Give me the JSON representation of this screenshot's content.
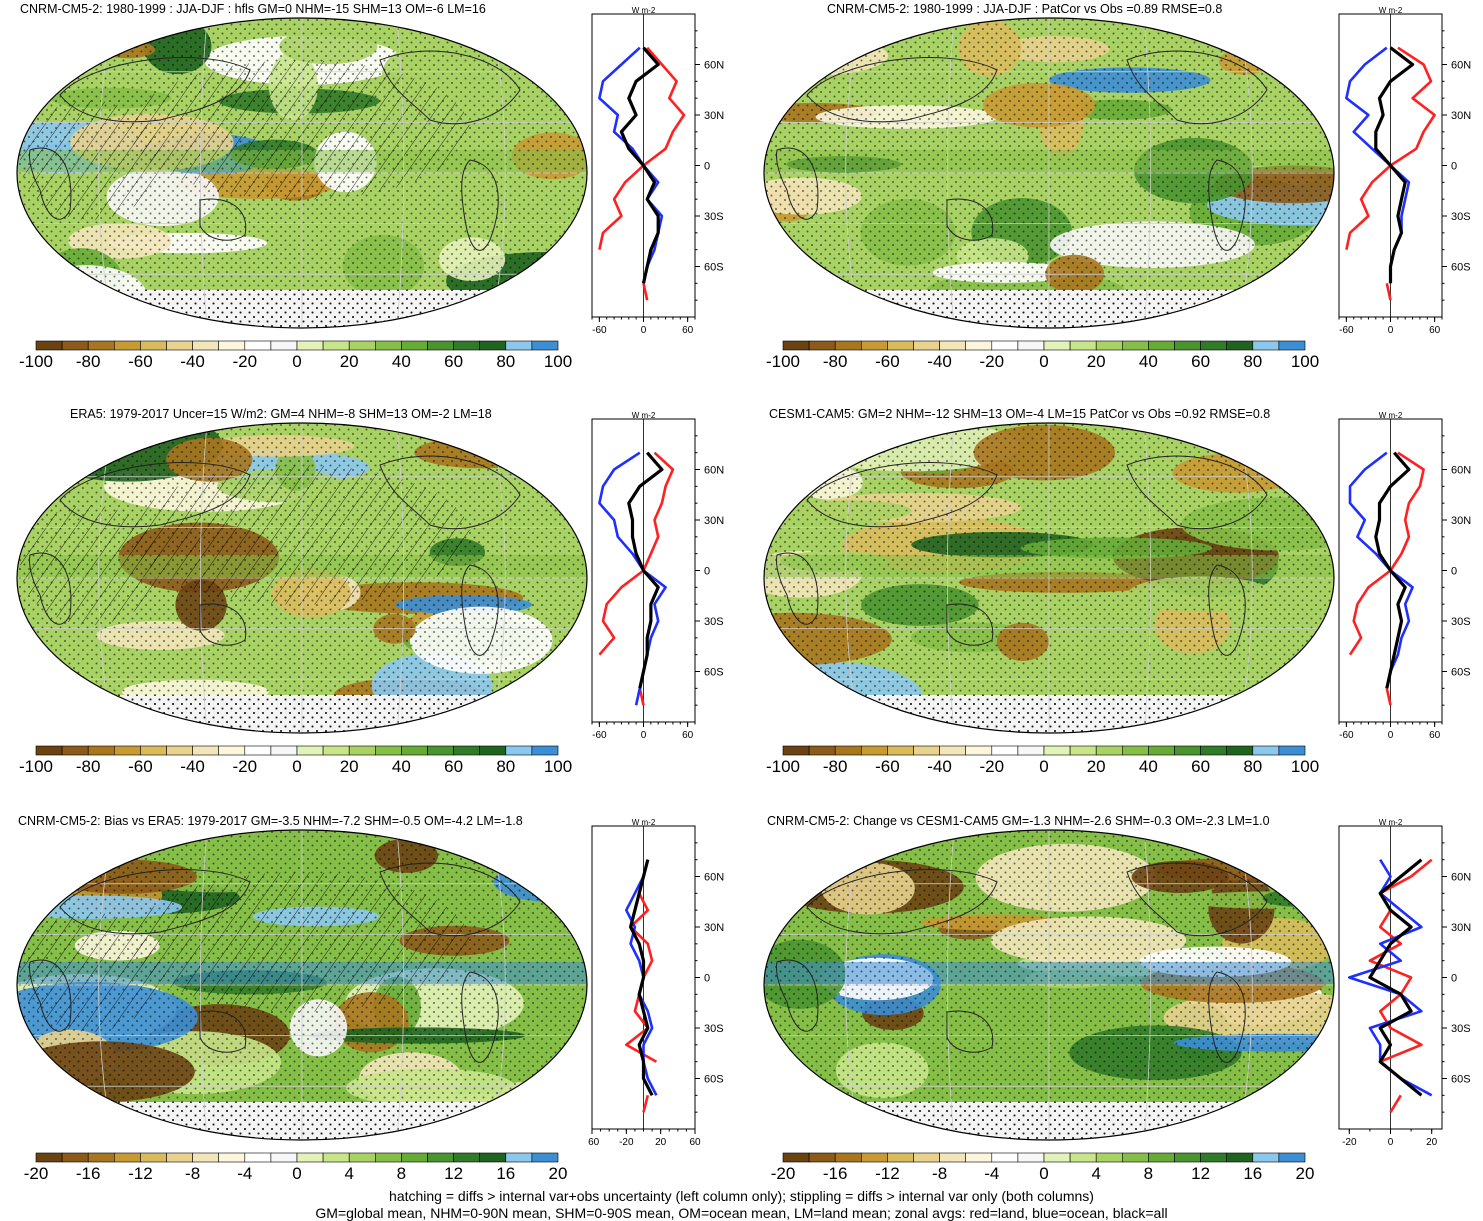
{
  "palette": [
    "#6b4313",
    "#8c5a19",
    "#a9761f",
    "#c89a33",
    "#d9bb5c",
    "#e8d28d",
    "#f2e6b9",
    "#fbf6dc",
    "#ffffff",
    "#f7f7f7",
    "#e3f2b8",
    "#c8e58a",
    "#a8d263",
    "#86bf47",
    "#66ab36",
    "#4a9430",
    "#317a28",
    "#1f6320",
    "#8cc8ee",
    "#3c8ed5"
  ],
  "line_colors": {
    "land": "#ff2020",
    "ocean": "#1e2fff",
    "all": "#000000"
  },
  "panels": [
    {
      "id": "p1",
      "title": "CNRM-CM5-2: 1980-1999 : JJA-DJF : hfls GM=0 NHM=-15 SHM=13 OM=-6 LM=16",
      "colorbar_labels": [
        "-100",
        "-80",
        "-60",
        "-40",
        "-20",
        "0",
        "20",
        "40",
        "60",
        "80",
        "100"
      ],
      "zonal_unit": "W m-2",
      "zonal_xticks": [
        "-60",
        "0",
        "60"
      ],
      "zonal_xlim": [
        -70,
        70
      ],
      "zonal_ylabels": [
        "60N",
        "30N",
        "0",
        "30S",
        "60S"
      ],
      "hatching": true,
      "chart_data": {
        "type": "line",
        "title": "CNRM-CM5-2: 1980-1999 : JJA-DJF : hfls GM=0 NHM=-15 SHM=13 OM=-6 LM=16",
        "xlabel": "W m-2",
        "latitudes": [
          80,
          70,
          60,
          50,
          40,
          30,
          20,
          10,
          0,
          -10,
          -20,
          -30,
          -40,
          -50,
          -60,
          -70,
          -80
        ],
        "series": [
          {
            "name": "red=land",
            "values": [
              null,
              5,
              25,
              45,
              35,
              55,
              40,
              30,
              0,
              -25,
              -40,
              -30,
              -55,
              -60,
              null,
              0,
              5
            ]
          },
          {
            "name": "blue=ocean",
            "values": [
              null,
              -5,
              -30,
              -55,
              -60,
              -35,
              -40,
              -15,
              0,
              20,
              5,
              25,
              20,
              15,
              5,
              0,
              null
            ]
          },
          {
            "name": "black=all",
            "values": [
              null,
              0,
              20,
              -10,
              -20,
              -10,
              -30,
              -20,
              0,
              15,
              5,
              20,
              20,
              10,
              5,
              0,
              null
            ]
          }
        ]
      }
    },
    {
      "id": "p2",
      "title": "CNRM-CM5-2: 1980-1999 : JJA-DJF : PatCor vs Obs =0.89 RMSE=0.8",
      "colorbar_labels": [
        "-100",
        "-80",
        "-60",
        "-40",
        "-20",
        "0",
        "20",
        "40",
        "60",
        "80",
        "100"
      ],
      "zonal_unit": "W m-2",
      "zonal_xticks": [
        "-60",
        "0",
        "60"
      ],
      "zonal_xlim": [
        -70,
        70
      ],
      "zonal_ylabels": [
        "60N",
        "30N",
        "0",
        "30S",
        "60S"
      ],
      "hatching": false,
      "chart_data": {
        "type": "line",
        "title": "CNRM-CM5-2: 1980-1999 : JJA-DJF : PatCor vs Obs =0.89 RMSE=0.8",
        "xlabel": "W m-2",
        "latitudes": [
          80,
          70,
          60,
          50,
          40,
          30,
          20,
          10,
          0,
          -10,
          -20,
          -30,
          -40,
          -50,
          -60,
          -70,
          -80
        ],
        "series": [
          {
            "name": "red=land",
            "values": [
              null,
              10,
              45,
              55,
              30,
              60,
              45,
              35,
              0,
              -25,
              -40,
              -30,
              -55,
              -60,
              null,
              -5,
              0
            ]
          },
          {
            "name": "blue=ocean",
            "values": [
              null,
              -5,
              -35,
              -55,
              -60,
              -30,
              -50,
              -25,
              0,
              25,
              20,
              15,
              15,
              5,
              0,
              0,
              null
            ]
          },
          {
            "name": "black=all",
            "values": [
              null,
              0,
              30,
              0,
              -15,
              -10,
              -20,
              -20,
              0,
              20,
              15,
              10,
              15,
              5,
              0,
              0,
              null
            ]
          }
        ]
      }
    },
    {
      "id": "p3",
      "title": "ERA5: 1979-2017 Uncer=15 W/m2: GM=4 NHM=-8 SHM=13 OM=-2 LM=18",
      "colorbar_labels": [
        "-100",
        "-80",
        "-60",
        "-40",
        "-20",
        "0",
        "20",
        "40",
        "60",
        "80",
        "100"
      ],
      "zonal_unit": "W m-2",
      "zonal_xticks": [
        "-60",
        "0",
        "60"
      ],
      "zonal_xlim": [
        -70,
        70
      ],
      "zonal_ylabels": [
        "60N",
        "30N",
        "0",
        "30S",
        "60S"
      ],
      "hatching": true,
      "chart_data": {
        "type": "line",
        "title": "ERA5: 1979-2017 Uncer=15 W/m2: GM=4 NHM=-8 SHM=13 OM=-2 LM=18",
        "xlabel": "W m-2",
        "latitudes": [
          80,
          70,
          60,
          50,
          40,
          30,
          20,
          10,
          0,
          -10,
          -20,
          -30,
          -40,
          -50,
          -60,
          -70,
          -80
        ],
        "series": [
          {
            "name": "red=land",
            "values": [
              null,
              15,
              40,
              30,
              25,
              15,
              20,
              10,
              0,
              -30,
              -50,
              -55,
              -40,
              -60,
              null,
              -5,
              0
            ]
          },
          {
            "name": "blue=ocean",
            "values": [
              null,
              -5,
              -40,
              -55,
              -60,
              -40,
              -35,
              -15,
              0,
              30,
              15,
              20,
              10,
              5,
              0,
              -5,
              -10
            ]
          },
          {
            "name": "black=all",
            "values": [
              null,
              5,
              25,
              -5,
              -20,
              -15,
              -15,
              -10,
              0,
              20,
              10,
              10,
              5,
              5,
              0,
              -5,
              null
            ]
          }
        ]
      }
    },
    {
      "id": "p4",
      "title": "CESM1-CAM5: GM=2 NHM=-12 SHM=13 OM=-4 LM=15 PatCor vs Obs =0.92 RMSE=0.8",
      "colorbar_labels": [
        "-100",
        "-80",
        "-60",
        "-40",
        "-20",
        "0",
        "20",
        "40",
        "60",
        "80",
        "100"
      ],
      "zonal_unit": "W m-2",
      "zonal_xticks": [
        "-60",
        "0",
        "60"
      ],
      "zonal_xlim": [
        -70,
        70
      ],
      "zonal_ylabels": [
        "60N",
        "30N",
        "0",
        "30S",
        "60S"
      ],
      "hatching": false,
      "chart_data": {
        "type": "line",
        "title": "CESM1-CAM5: GM=2 NHM=-12 SHM=13 OM=-4 LM=15 PatCor vs Obs =0.92 RMSE=0.8",
        "xlabel": "W m-2",
        "latitudes": [
          80,
          70,
          60,
          50,
          40,
          30,
          20,
          10,
          0,
          -10,
          -20,
          -30,
          -40,
          -50,
          -60,
          -70,
          -80
        ],
        "series": [
          {
            "name": "red=land",
            "values": [
              null,
              10,
              45,
              40,
              25,
              20,
              25,
              15,
              0,
              -30,
              -45,
              -50,
              -40,
              -55,
              null,
              -5,
              0
            ]
          },
          {
            "name": "blue=ocean",
            "values": [
              null,
              -5,
              -35,
              -55,
              -55,
              -35,
              -45,
              -20,
              0,
              30,
              20,
              25,
              15,
              10,
              0,
              -5,
              null
            ]
          },
          {
            "name": "black=all",
            "values": [
              null,
              5,
              25,
              0,
              -15,
              -15,
              -20,
              -15,
              0,
              20,
              10,
              15,
              10,
              5,
              0,
              -5,
              null
            ]
          }
        ]
      }
    },
    {
      "id": "p5",
      "title": "CNRM-CM5-2: Bias vs ERA5: 1979-2017 GM=-3.5 NHM=-7.2 SHM=-0.5 OM=-4.2 LM=-1.8",
      "colorbar_labels": [
        "-20",
        "-16",
        "-12",
        "-8",
        "-4",
        "0",
        "4",
        "8",
        "12",
        "16",
        "20"
      ],
      "zonal_unit": "W m-2",
      "zonal_xticks": [
        "-60",
        "-20",
        "20",
        "60"
      ],
      "zonal_xlim": [
        -60,
        60
      ],
      "zonal_ylabels": [
        "60N",
        "30N",
        "0",
        "30S",
        "60S"
      ],
      "hatching": true,
      "chart_data": {
        "type": "line",
        "title": "CNRM-CM5-2: Bias vs ERA5: 1979-2017 GM=-3.5 NHM=-7.2 SHM=-0.5 OM=-4.2 LM=-1.8",
        "xlabel": "W m-2",
        "latitudes": [
          80,
          70,
          60,
          50,
          40,
          30,
          20,
          10,
          0,
          -10,
          -20,
          -30,
          -40,
          -50,
          -60,
          -70,
          -80
        ],
        "series": [
          {
            "name": "red=land",
            "values": [
              null,
              5,
              0,
              -5,
              5,
              -15,
              5,
              10,
              0,
              -5,
              -10,
              5,
              -20,
              15,
              null,
              5,
              0
            ]
          },
          {
            "name": "blue=ocean",
            "values": [
              null,
              5,
              0,
              -10,
              -20,
              -10,
              -15,
              -5,
              0,
              -5,
              5,
              10,
              0,
              0,
              5,
              15,
              null
            ]
          },
          {
            "name": "black=all",
            "values": [
              null,
              5,
              0,
              -5,
              -10,
              -15,
              -5,
              0,
              0,
              -5,
              0,
              5,
              -5,
              0,
              0,
              10,
              null
            ]
          }
        ]
      }
    },
    {
      "id": "p6",
      "title": "CNRM-CM5-2: Change vs CESM1-CAM5 GM=-1.3 NHM=-2.6 SHM=-0.3 OM=-2.3 LM=1.0",
      "colorbar_labels": [
        "-20",
        "-16",
        "-12",
        "-8",
        "-4",
        "0",
        "4",
        "8",
        "12",
        "16",
        "20"
      ],
      "zonal_unit": "W m-2",
      "zonal_xticks": [
        "-20",
        "0",
        "20"
      ],
      "zonal_xlim": [
        -25,
        25
      ],
      "zonal_ylabels": [
        "60N",
        "30N",
        "0",
        "30S",
        "60S"
      ],
      "hatching": false,
      "chart_data": {
        "type": "line",
        "title": "CNRM-CM5-2: Change vs CESM1-CAM5 GM=-1.3 NHM=-2.6 SHM=-0.3 OM=-2.3 LM=1.0",
        "xlabel": "W m-2",
        "latitudes": [
          80,
          70,
          60,
          50,
          40,
          30,
          20,
          10,
          0,
          -10,
          -20,
          -30,
          -40,
          -50,
          -60,
          -70,
          -80
        ],
        "series": [
          {
            "name": "red=land",
            "values": [
              null,
              20,
              10,
              -5,
              0,
              -5,
              5,
              -10,
              10,
              5,
              -5,
              0,
              15,
              -5,
              null,
              5,
              0
            ]
          },
          {
            "name": "blue=ocean",
            "values": [
              null,
              -5,
              0,
              -5,
              5,
              15,
              -5,
              5,
              -20,
              5,
              15,
              -10,
              -5,
              -5,
              5,
              20,
              null
            ]
          },
          {
            "name": "black=all",
            "values": [
              null,
              15,
              5,
              -5,
              0,
              10,
              0,
              -5,
              -10,
              5,
              10,
              -5,
              0,
              -5,
              5,
              15,
              null
            ]
          }
        ]
      }
    }
  ],
  "footnote": {
    "line1": "hatching = diffs > internal var+obs uncertainty (left column only); stippling = diffs > internal var only (both columns)",
    "line2": "GM=global mean, NHM=0-90N mean, SHM=0-90S mean, OM=ocean mean, LM=land mean; zonal avgs: red=land, blue=ocean, black=all"
  }
}
